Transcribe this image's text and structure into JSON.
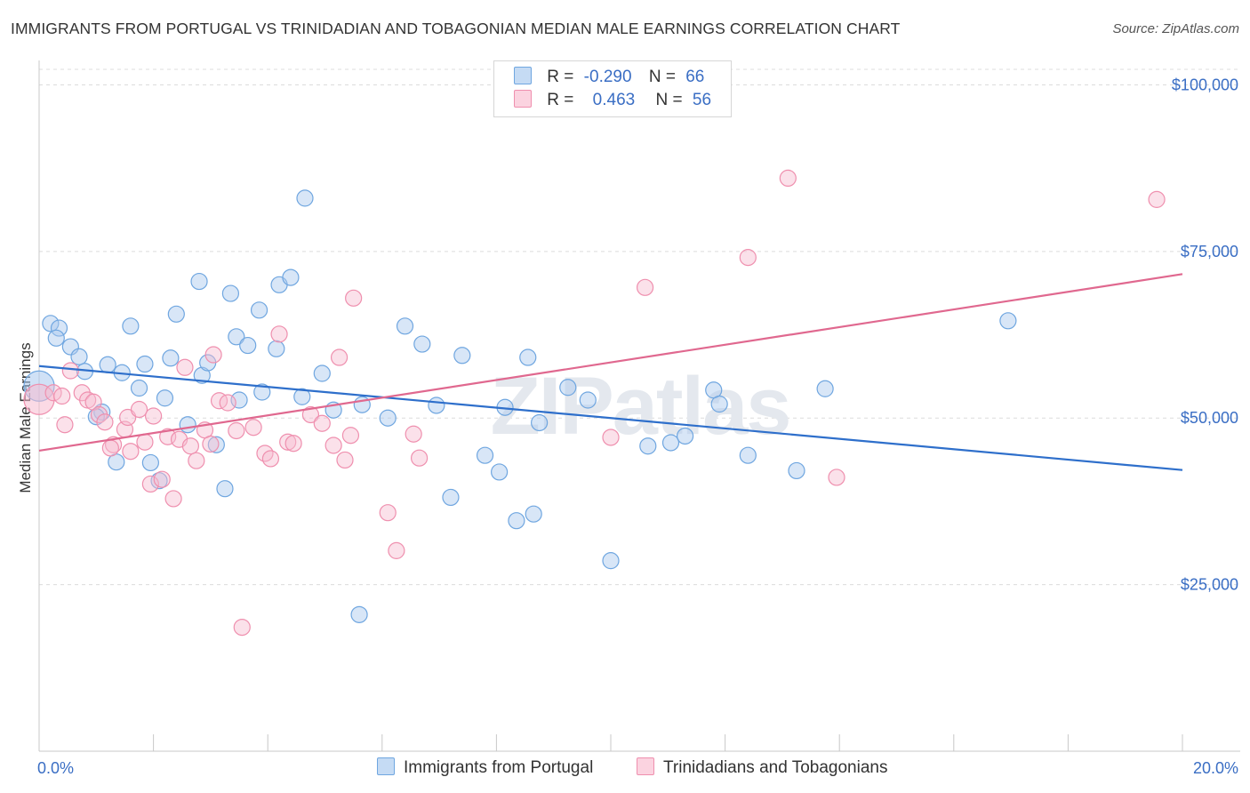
{
  "title": "IMMIGRANTS FROM PORTUGAL VS TRINIDADIAN AND TOBAGONIAN MEDIAN MALE EARNINGS CORRELATION CHART",
  "source": "Source: ZipAtlas.com",
  "watermark": "ZIPatlas",
  "legend": {
    "rows": [
      {
        "r_label": "R =",
        "r_value": "-0.290",
        "n_label": "N =",
        "n_value": "66",
        "color": "#9fc3ec"
      },
      {
        "r_label": "R =",
        "r_value": "0.463",
        "n_label": "N =",
        "n_value": "56",
        "color": "#f6b3c8"
      }
    ]
  },
  "chart_data": {
    "type": "scatter",
    "title": "IMMIGRANTS FROM PORTUGAL VS TRINIDADIAN AND TOBAGONIAN MEDIAN MALE EARNINGS CORRELATION CHART",
    "xlabel": "",
    "ylabel": "Median Male Earnings",
    "xlim": [
      0,
      20
    ],
    "ylim": [
      0,
      105000
    ],
    "x_tick_labels": [
      "0.0%",
      "20.0%"
    ],
    "y_ticks": [
      25000,
      50000,
      75000,
      100000
    ],
    "y_tick_labels": [
      "$25,000",
      "$50,000",
      "$75,000",
      "$100,000"
    ],
    "grid": true,
    "legend_position": "top-center",
    "series": [
      {
        "name": "Immigrants from Portugal",
        "color": "#6fa6e0",
        "fill": "#a9c8ee",
        "trend": {
          "x": [
            0,
            20
          ],
          "y": [
            57800,
            42200
          ],
          "color": "#2e6fcb"
        },
        "points": [
          [
            0.0,
            54800
          ],
          [
            0.2,
            64200
          ],
          [
            0.35,
            63500
          ],
          [
            0.3,
            62000
          ],
          [
            0.55,
            60700
          ],
          [
            0.7,
            59200
          ],
          [
            0.8,
            57000
          ],
          [
            1.2,
            58000
          ],
          [
            1.45,
            56800
          ],
          [
            1.6,
            63800
          ],
          [
            1.75,
            54500
          ],
          [
            1.85,
            58100
          ],
          [
            1.1,
            50900
          ],
          [
            1.0,
            50200
          ],
          [
            1.35,
            43400
          ],
          [
            1.95,
            43300
          ],
          [
            2.2,
            53000
          ],
          [
            2.1,
            40600
          ],
          [
            2.3,
            59000
          ],
          [
            2.4,
            65600
          ],
          [
            2.6,
            49000
          ],
          [
            2.8,
            70500
          ],
          [
            2.85,
            56400
          ],
          [
            2.95,
            58300
          ],
          [
            3.1,
            46000
          ],
          [
            3.25,
            39400
          ],
          [
            3.35,
            68700
          ],
          [
            3.45,
            62200
          ],
          [
            3.5,
            52700
          ],
          [
            3.65,
            60900
          ],
          [
            3.85,
            66200
          ],
          [
            3.9,
            53900
          ],
          [
            4.15,
            60400
          ],
          [
            4.2,
            70000
          ],
          [
            4.4,
            71100
          ],
          [
            4.6,
            53200
          ],
          [
            4.65,
            83000
          ],
          [
            4.95,
            56700
          ],
          [
            5.15,
            51200
          ],
          [
            5.65,
            52000
          ],
          [
            5.6,
            20500
          ],
          [
            6.1,
            50000
          ],
          [
            6.4,
            63800
          ],
          [
            6.7,
            61100
          ],
          [
            6.95,
            51900
          ],
          [
            7.2,
            38100
          ],
          [
            7.4,
            59400
          ],
          [
            7.8,
            44400
          ],
          [
            8.05,
            41900
          ],
          [
            8.15,
            51600
          ],
          [
            8.35,
            34600
          ],
          [
            8.55,
            59100
          ],
          [
            8.65,
            35600
          ],
          [
            8.75,
            49300
          ],
          [
            9.25,
            54600
          ],
          [
            9.6,
            52700
          ],
          [
            10.0,
            28600
          ],
          [
            10.65,
            45800
          ],
          [
            11.05,
            46300
          ],
          [
            11.3,
            47300
          ],
          [
            11.8,
            54200
          ],
          [
            11.9,
            52100
          ],
          [
            12.4,
            44400
          ],
          [
            13.25,
            42100
          ],
          [
            13.75,
            54400
          ],
          [
            16.95,
            64600
          ]
        ]
      },
      {
        "name": "Trinidadians and Tobagonians",
        "color": "#ef8fae",
        "fill": "#f7bcd0",
        "trend": {
          "x": [
            0,
            20
          ],
          "y": [
            45100,
            71600
          ],
          "color": "#e0688f"
        },
        "points": [
          [
            0.0,
            52800
          ],
          [
            0.25,
            53800
          ],
          [
            0.4,
            53300
          ],
          [
            0.45,
            49000
          ],
          [
            0.55,
            57100
          ],
          [
            0.75,
            53800
          ],
          [
            0.85,
            52700
          ],
          [
            0.95,
            52400
          ],
          [
            1.05,
            50500
          ],
          [
            1.15,
            49400
          ],
          [
            1.3,
            46000
          ],
          [
            1.25,
            45500
          ],
          [
            1.5,
            48300
          ],
          [
            1.55,
            50100
          ],
          [
            1.6,
            45000
          ],
          [
            1.75,
            51300
          ],
          [
            1.85,
            46400
          ],
          [
            1.95,
            40100
          ],
          [
            2.0,
            50300
          ],
          [
            2.15,
            40800
          ],
          [
            2.25,
            47200
          ],
          [
            2.35,
            37900
          ],
          [
            2.45,
            46800
          ],
          [
            2.55,
            57600
          ],
          [
            2.65,
            45800
          ],
          [
            2.75,
            43600
          ],
          [
            2.9,
            48200
          ],
          [
            3.0,
            46100
          ],
          [
            3.05,
            59500
          ],
          [
            3.15,
            52600
          ],
          [
            3.3,
            52300
          ],
          [
            3.45,
            48100
          ],
          [
            3.55,
            18600
          ],
          [
            3.75,
            48600
          ],
          [
            3.95,
            44700
          ],
          [
            4.05,
            43900
          ],
          [
            4.2,
            62600
          ],
          [
            4.35,
            46400
          ],
          [
            4.45,
            46200
          ],
          [
            4.75,
            50500
          ],
          [
            4.95,
            49200
          ],
          [
            5.15,
            45900
          ],
          [
            5.25,
            59100
          ],
          [
            5.35,
            43700
          ],
          [
            5.45,
            47400
          ],
          [
            5.5,
            68000
          ],
          [
            6.1,
            35800
          ],
          [
            6.25,
            30100
          ],
          [
            6.55,
            47600
          ],
          [
            6.65,
            44000
          ],
          [
            10.0,
            47100
          ],
          [
            10.6,
            69600
          ],
          [
            12.4,
            74100
          ],
          [
            13.1,
            86000
          ],
          [
            13.95,
            41100
          ],
          [
            19.55,
            82800
          ]
        ]
      }
    ]
  },
  "bottom_legend": [
    {
      "label": "Immigrants from Portugal",
      "color": "#a9c8ee",
      "border": "#6fa6e0"
    },
    {
      "label": "Trinidadians and Tobagonians",
      "color": "#f7bcd0",
      "border": "#ef8fae"
    }
  ]
}
